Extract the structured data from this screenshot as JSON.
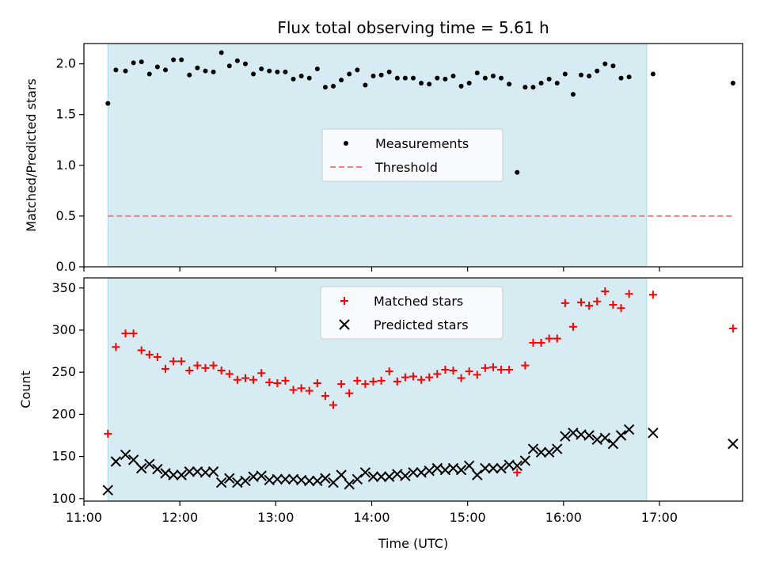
{
  "chart_data": {
    "title": "Flux total observing time = 5.61 h",
    "xlabel": "Time (UTC)",
    "x_unit": "hours UTC",
    "xlim": [
      "11:00",
      "17:52"
    ],
    "xticks": [
      "11:00",
      "12:00",
      "13:00",
      "14:00",
      "15:00",
      "16:00",
      "17:00"
    ],
    "shaded_interval": [
      "11:15",
      "16:52"
    ],
    "shade_color": "#add8e6",
    "panels": [
      {
        "type": "scatter",
        "ylabel": "Matched/Predicted stars",
        "ylim": [
          0,
          2.2
        ],
        "yticks": [
          "0.0",
          "0.5",
          "1.0",
          "1.5",
          "2.0"
        ],
        "legend_position": "center",
        "series": [
          {
            "name": "Measurements",
            "marker": "dot",
            "color": "#000000",
            "points": [
              [
                "11:15",
                1.61
              ],
              [
                "11:20",
                1.94
              ],
              [
                "11:26",
                1.93
              ],
              [
                "11:31",
                2.01
              ],
              [
                "11:36",
                2.02
              ],
              [
                "11:41",
                1.9
              ],
              [
                "11:46",
                1.97
              ],
              [
                "11:51",
                1.94
              ],
              [
                "11:56",
                2.04
              ],
              [
                "12:01",
                2.04
              ],
              [
                "12:06",
                1.89
              ],
              [
                "12:11",
                1.96
              ],
              [
                "12:16",
                1.93
              ],
              [
                "12:21",
                1.92
              ],
              [
                "12:26",
                2.11
              ],
              [
                "12:31",
                1.98
              ],
              [
                "12:36",
                2.03
              ],
              [
                "12:41",
                2.0
              ],
              [
                "12:46",
                1.9
              ],
              [
                "12:51",
                1.95
              ],
              [
                "12:56",
                1.93
              ],
              [
                "13:01",
                1.92
              ],
              [
                "13:06",
                1.92
              ],
              [
                "13:11",
                1.85
              ],
              [
                "13:16",
                1.88
              ],
              [
                "13:21",
                1.86
              ],
              [
                "13:26",
                1.95
              ],
              [
                "13:31",
                1.77
              ],
              [
                "13:36",
                1.78
              ],
              [
                "13:41",
                1.84
              ],
              [
                "13:46",
                1.9
              ],
              [
                "13:51",
                1.94
              ],
              [
                "13:56",
                1.79
              ],
              [
                "14:01",
                1.88
              ],
              [
                "14:06",
                1.89
              ],
              [
                "14:11",
                1.92
              ],
              [
                "14:16",
                1.86
              ],
              [
                "14:21",
                1.86
              ],
              [
                "14:26",
                1.86
              ],
              [
                "14:31",
                1.81
              ],
              [
                "14:36",
                1.8
              ],
              [
                "14:41",
                1.86
              ],
              [
                "14:46",
                1.85
              ],
              [
                "14:51",
                1.88
              ],
              [
                "14:56",
                1.78
              ],
              [
                "15:01",
                1.81
              ],
              [
                "15:06",
                1.91
              ],
              [
                "15:11",
                1.86
              ],
              [
                "15:16",
                1.88
              ],
              [
                "15:21",
                1.86
              ],
              [
                "15:26",
                1.8
              ],
              [
                "15:31",
                0.93
              ],
              [
                "15:36",
                1.77
              ],
              [
                "15:41",
                1.77
              ],
              [
                "15:46",
                1.81
              ],
              [
                "15:51",
                1.85
              ],
              [
                "15:56",
                1.81
              ],
              [
                "16:01",
                1.9
              ],
              [
                "16:06",
                1.7
              ],
              [
                "16:11",
                1.89
              ],
              [
                "16:16",
                1.88
              ],
              [
                "16:21",
                1.93
              ],
              [
                "16:26",
                2.0
              ],
              [
                "16:31",
                1.98
              ],
              [
                "16:36",
                1.86
              ],
              [
                "16:41",
                1.87
              ],
              [
                "16:56",
                1.9
              ],
              [
                "17:46",
                1.81
              ]
            ]
          },
          {
            "name": "Threshold",
            "style": "dashed",
            "color": "#f08080",
            "points": [
              [
                "11:15",
                0.5
              ],
              [
                "17:46",
                0.5
              ]
            ]
          }
        ]
      },
      {
        "type": "scatter",
        "ylabel": "Count",
        "ylim": [
          97,
          362
        ],
        "yticks": [
          "100",
          "150",
          "200",
          "250",
          "300",
          "350"
        ],
        "legend_position": "upper center",
        "series": [
          {
            "name": "Matched stars",
            "marker": "plus",
            "color": "#ff0000",
            "points": [
              [
                "11:15",
                177
              ],
              [
                "11:20",
                280
              ],
              [
                "11:26",
                296
              ],
              [
                "11:31",
                296
              ],
              [
                "11:36",
                276
              ],
              [
                "11:41",
                271
              ],
              [
                "11:46",
                268
              ],
              [
                "11:51",
                254
              ],
              [
                "11:56",
                263
              ],
              [
                "12:01",
                263
              ],
              [
                "12:06",
                252
              ],
              [
                "12:11",
                258
              ],
              [
                "12:16",
                255
              ],
              [
                "12:21",
                258
              ],
              [
                "12:26",
                252
              ],
              [
                "12:31",
                248
              ],
              [
                "12:36",
                241
              ],
              [
                "12:41",
                243
              ],
              [
                "12:46",
                241
              ],
              [
                "12:51",
                249
              ],
              [
                "12:56",
                238
              ],
              [
                "13:01",
                237
              ],
              [
                "13:06",
                240
              ],
              [
                "13:11",
                229
              ],
              [
                "13:16",
                231
              ],
              [
                "13:21",
                228
              ],
              [
                "13:26",
                237
              ],
              [
                "13:31",
                222
              ],
              [
                "13:36",
                211
              ],
              [
                "13:41",
                236
              ],
              [
                "13:46",
                225
              ],
              [
                "13:51",
                240
              ],
              [
                "13:56",
                236
              ],
              [
                "14:01",
                239
              ],
              [
                "14:06",
                240
              ],
              [
                "14:11",
                251
              ],
              [
                "14:16",
                239
              ],
              [
                "14:21",
                244
              ],
              [
                "14:26",
                245
              ],
              [
                "14:31",
                241
              ],
              [
                "14:36",
                244
              ],
              [
                "14:41",
                248
              ],
              [
                "14:46",
                253
              ],
              [
                "14:51",
                252
              ],
              [
                "14:56",
                243
              ],
              [
                "15:01",
                251
              ],
              [
                "15:06",
                247
              ],
              [
                "15:11",
                255
              ],
              [
                "15:16",
                256
              ],
              [
                "15:21",
                253
              ],
              [
                "15:26",
                253
              ],
              [
                "15:31",
                131
              ],
              [
                "15:36",
                258
              ],
              [
                "15:41",
                285
              ],
              [
                "15:46",
                285
              ],
              [
                "15:51",
                290
              ],
              [
                "15:56",
                290
              ],
              [
                "16:01",
                332
              ],
              [
                "16:06",
                304
              ],
              [
                "16:11",
                333
              ],
              [
                "16:16",
                329
              ],
              [
                "16:21",
                334
              ],
              [
                "16:26",
                346
              ],
              [
                "16:31",
                330
              ],
              [
                "16:36",
                326
              ],
              [
                "16:41",
                343
              ],
              [
                "16:56",
                342
              ],
              [
                "17:46",
                302
              ]
            ]
          },
          {
            "name": "Predicted stars",
            "marker": "x",
            "color": "#000000",
            "points": [
              [
                "11:15",
                110
              ],
              [
                "11:20",
                144
              ],
              [
                "11:26",
                152
              ],
              [
                "11:31",
                146
              ],
              [
                "11:36",
                136
              ],
              [
                "11:41",
                141
              ],
              [
                "11:46",
                135
              ],
              [
                "11:51",
                130
              ],
              [
                "11:56",
                128
              ],
              [
                "12:01",
                128
              ],
              [
                "12:06",
                132
              ],
              [
                "12:11",
                132
              ],
              [
                "12:16",
                131
              ],
              [
                "12:21",
                132
              ],
              [
                "12:26",
                119
              ],
              [
                "12:31",
                124
              ],
              [
                "12:36",
                119
              ],
              [
                "12:41",
                121
              ],
              [
                "12:46",
                126
              ],
              [
                "12:51",
                127
              ],
              [
                "12:56",
                122
              ],
              [
                "13:01",
                123
              ],
              [
                "13:06",
                123
              ],
              [
                "13:11",
                123
              ],
              [
                "13:16",
                122
              ],
              [
                "13:21",
                121
              ],
              [
                "13:26",
                121
              ],
              [
                "13:31",
                124
              ],
              [
                "13:36",
                119
              ],
              [
                "13:41",
                128
              ],
              [
                "13:46",
                117
              ],
              [
                "13:51",
                123
              ],
              [
                "13:56",
                131
              ],
              [
                "14:01",
                126
              ],
              [
                "14:06",
                126
              ],
              [
                "14:11",
                126
              ],
              [
                "14:16",
                129
              ],
              [
                "14:21",
                127
              ],
              [
                "14:26",
                131
              ],
              [
                "14:31",
                131
              ],
              [
                "14:36",
                133
              ],
              [
                "14:41",
                136
              ],
              [
                "14:46",
                134
              ],
              [
                "14:51",
                136
              ],
              [
                "14:56",
                134
              ],
              [
                "15:01",
                139
              ],
              [
                "15:06",
                128
              ],
              [
                "15:11",
                136
              ],
              [
                "15:16",
                136
              ],
              [
                "15:21",
                136
              ],
              [
                "15:26",
                140
              ],
              [
                "15:31",
                139
              ],
              [
                "15:36",
                145
              ],
              [
                "15:41",
                159
              ],
              [
                "15:46",
                155
              ],
              [
                "15:51",
                155
              ],
              [
                "15:56",
                159
              ],
              [
                "16:01",
                174
              ],
              [
                "16:06",
                178
              ],
              [
                "16:11",
                176
              ],
              [
                "16:16",
                175
              ],
              [
                "16:21",
                170
              ],
              [
                "16:26",
                172
              ],
              [
                "16:31",
                165
              ],
              [
                "16:36",
                175
              ],
              [
                "16:41",
                182
              ],
              [
                "16:56",
                178
              ],
              [
                "17:46",
                165
              ]
            ]
          }
        ]
      }
    ]
  }
}
